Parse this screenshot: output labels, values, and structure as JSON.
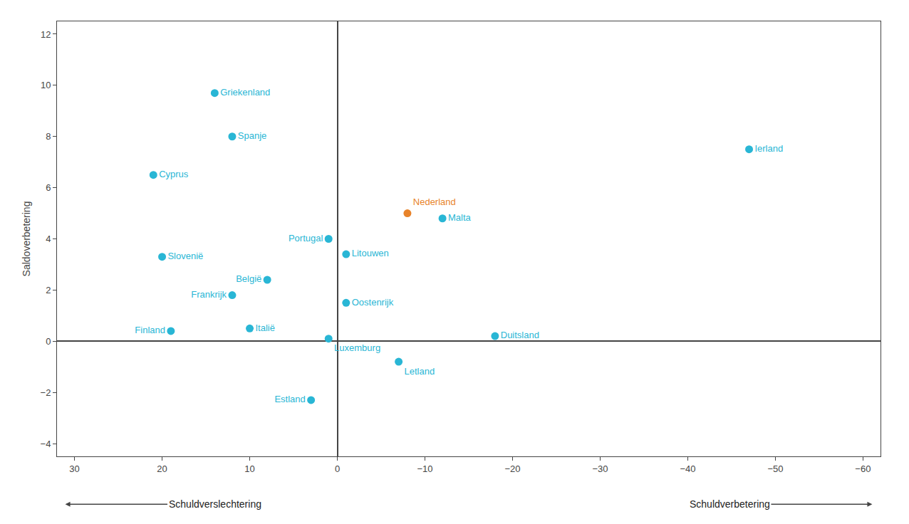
{
  "chart_data": {
    "type": "scatter",
    "x": [
      14,
      12,
      21,
      -47,
      -8,
      -12,
      1,
      -1,
      20,
      8,
      12,
      -1,
      10,
      19,
      1,
      -18,
      -7,
      3
    ],
    "values": [
      9.7,
      8.0,
      6.5,
      7.5,
      5.0,
      4.8,
      4.0,
      3.4,
      3.3,
      2.4,
      1.8,
      1.5,
      0.5,
      0.4,
      0.1,
      0.2,
      -0.8,
      -2.3
    ],
    "labels": [
      "Griekenland",
      "Spanje",
      "Cyprus",
      "Ierland",
      "Nederland",
      "Malta",
      "Portugal",
      "Litouwen",
      "Slovenië",
      "België",
      "Frankrijk",
      "Oostenrijk",
      "Italië",
      "Finland",
      "Luxemburg",
      "Duitsland",
      "Letland",
      "Estland"
    ],
    "colors": [
      "#29b6d5",
      "#29b6d5",
      "#29b6d5",
      "#29b6d5",
      "#e8832a",
      "#29b6d5",
      "#29b6d5",
      "#29b6d5",
      "#29b6d5",
      "#29b6d5",
      "#29b6d5",
      "#29b6d5",
      "#29b6d5",
      "#29b6d5",
      "#29b6d5",
      "#29b6d5",
      "#29b6d5",
      "#29b6d5"
    ],
    "xlim": [
      32,
      -62
    ],
    "ylim": [
      -4.5,
      12.5
    ],
    "xticks": [
      30,
      20,
      10,
      0,
      -10,
      -20,
      -30,
      -40,
      -50,
      -60
    ],
    "yticks": [
      -4,
      -2,
      0,
      2,
      4,
      6,
      8,
      10,
      12
    ],
    "ylabel": "Saldoverbetering",
    "annotations": [
      "Schuldverslechtering",
      "Schuldverbetering"
    ],
    "grid": false
  }
}
